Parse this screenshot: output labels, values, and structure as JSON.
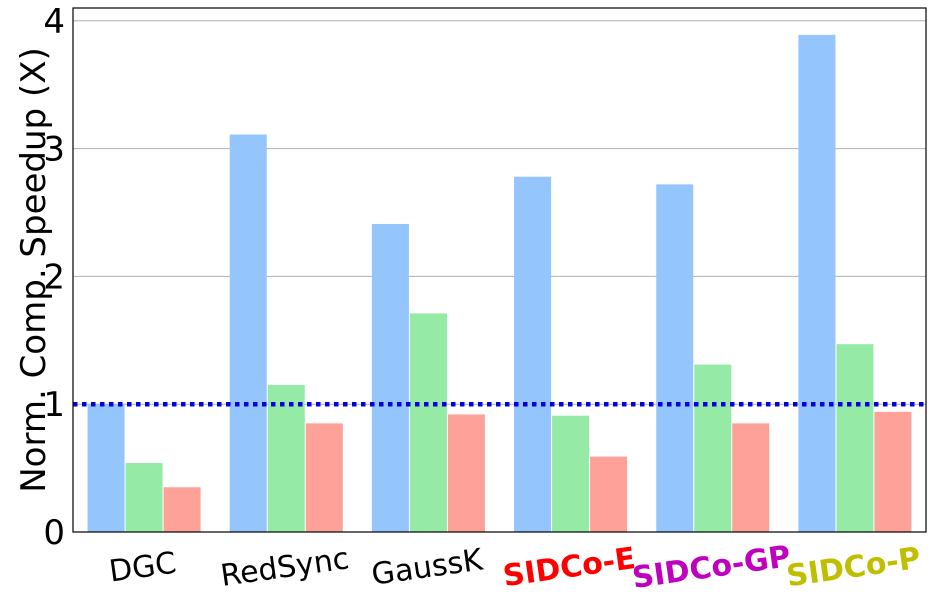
{
  "chart_data": {
    "type": "bar",
    "title": "",
    "xlabel": "",
    "ylabel": "Norm. Comp. Speedup (X)",
    "ylim": [
      0,
      4.1
    ],
    "yticks": [
      "0",
      "1",
      "2",
      "3",
      "4"
    ],
    "grid": "horizontal",
    "reference_line": {
      "y": 1,
      "style": "dotted",
      "color": "#0000dd"
    },
    "categories": [
      {
        "label": "DGC",
        "color": "#000000",
        "bold": false
      },
      {
        "label": "RedSync",
        "color": "#000000",
        "bold": false
      },
      {
        "label": "GaussK",
        "color": "#000000",
        "bold": false
      },
      {
        "label": "SIDCo-E",
        "color": "#ff0000",
        "bold": true
      },
      {
        "label": "SIDCo-GP",
        "color": "#bf00bf",
        "bold": true
      },
      {
        "label": "SIDCo-P",
        "color": "#bfbf00",
        "bold": true
      }
    ],
    "series": [
      {
        "color": "#94c5fc",
        "values": [
          1.0,
          3.11,
          2.41,
          2.78,
          2.72,
          3.89
        ]
      },
      {
        "color": "#95eba6",
        "values": [
          0.54,
          1.15,
          1.71,
          0.91,
          1.31,
          1.47
        ]
      },
      {
        "color": "#fea198",
        "values": [
          0.35,
          0.85,
          0.92,
          0.59,
          0.85,
          0.94
        ]
      }
    ]
  }
}
